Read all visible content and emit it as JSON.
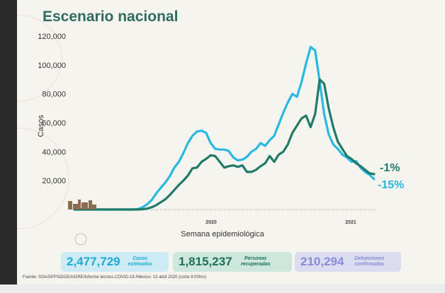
{
  "title": "Escenario nacional",
  "cards": {
    "cases": {
      "value": "2,477,729",
      "label": "Casos estimados"
    },
    "recovered": {
      "value": "1,815,237",
      "label": "Personas recuperadas"
    },
    "deaths": {
      "value": "210,294",
      "label": "Defunciones confirmadas"
    }
  },
  "source": "Fuente: SSA/SPPS/DGE/InDRE/Informe técnico.COVID-19 /México- 13 abril 2020 (corte 9:00hrs)",
  "colors": {
    "estimated": "#28b8e0",
    "confirmed": "#1f7a68"
  },
  "chart_data": {
    "type": "line",
    "title": "Escenario nacional",
    "xlabel": "Semana epidemiológica",
    "ylabel": "Casos",
    "ylim": [
      0,
      120000
    ],
    "yticks": [
      "20,000",
      "40,000",
      "60,000",
      "80,000",
      "100,000",
      "120,000"
    ],
    "year_labels": [
      "2020",
      "2021"
    ],
    "x_weeks": [
      1,
      2,
      3,
      4,
      5,
      6,
      7,
      8,
      9,
      10,
      11,
      12,
      13,
      14,
      15,
      16,
      17,
      18,
      19,
      20,
      21,
      22,
      23,
      24,
      25,
      26,
      27,
      28,
      29,
      30,
      31,
      32,
      33,
      34,
      35,
      36,
      37,
      38,
      39,
      40,
      41,
      42,
      43,
      44,
      45,
      46,
      47,
      48,
      49,
      50,
      51,
      52,
      53,
      54,
      55,
      56,
      57,
      58,
      59,
      60,
      61,
      62,
      63,
      64,
      65,
      66,
      67
    ],
    "series": [
      {
        "name": "",
        "values": [
          0,
          0,
          0,
          0,
          0,
          0,
          0,
          0,
          0,
          0,
          0,
          0,
          0,
          0,
          300,
          1500,
          3500,
          6500,
          11000,
          15000,
          18500,
          23000,
          29000,
          33000,
          39000,
          46000,
          51000,
          54000,
          54500,
          53000,
          46000,
          42000,
          41500,
          41500,
          40500,
          36000,
          34000,
          34500,
          36500,
          40000,
          42000,
          46000,
          44000,
          48000,
          51000,
          59000,
          67000,
          74000,
          80000,
          78000,
          88000,
          101000,
          112500,
          110000,
          89000,
          66000,
          52000,
          45000,
          42000,
          38000,
          36000,
          33000,
          33500,
          29000,
          26000,
          24000,
          21000
        ],
        "end_label": "-15%"
      },
      {
        "name": "",
        "values": [
          0,
          0,
          0,
          0,
          0,
          0,
          0,
          0,
          0,
          0,
          0,
          0,
          0,
          0,
          0,
          200,
          600,
          1500,
          3000,
          5000,
          7000,
          10000,
          13500,
          17000,
          20000,
          23500,
          28500,
          29000,
          33000,
          35000,
          37500,
          37000,
          33000,
          29000,
          30000,
          30500,
          29500,
          30500,
          26000,
          26000,
          27500,
          30000,
          32000,
          37000,
          33000,
          38000,
          40000,
          45000,
          53000,
          58000,
          63000,
          65000,
          57000,
          66000,
          90000,
          87000,
          70000,
          57000,
          47000,
          42000,
          37000,
          35000,
          32000,
          30000,
          27500,
          25000,
          24500
        ],
        "end_label": "-1%"
      }
    ]
  }
}
